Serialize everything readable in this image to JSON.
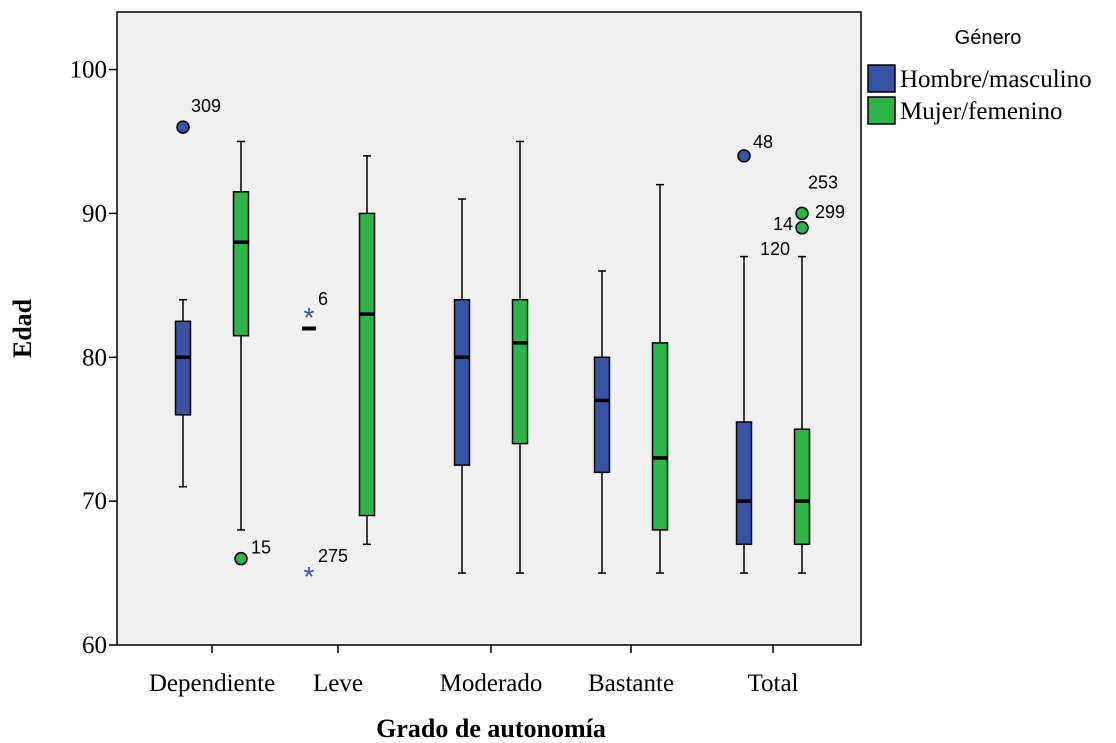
{
  "chart_data": {
    "type": "boxplot",
    "xlabel": "Grado de autonomía",
    "ylabel": "Edad",
    "ylim": [
      60,
      104
    ],
    "yticks": [
      60,
      70,
      80,
      90,
      100
    ],
    "categories": [
      "Dependiente",
      "Leve",
      "Moderado",
      "Bastante",
      "Total"
    ],
    "legend": {
      "title": "Género",
      "position": "top-right",
      "entries": [
        {
          "name": "Hombre/masculino",
          "color": "#3953a4"
        },
        {
          "name": "Mujer/femenino",
          "color": "#2fb44a"
        }
      ]
    },
    "grid": false,
    "background": "#f0f0f0",
    "series": [
      {
        "name": "Hombre/masculino",
        "color": "#3953a4",
        "boxes": [
          {
            "category": "Dependiente",
            "min": 71,
            "q1": 76,
            "median": 80,
            "q3": 82.5,
            "max": 84
          },
          {
            "category": "Leve",
            "min": 82,
            "q1": 82,
            "median": 82,
            "q3": 82,
            "max": 82
          },
          {
            "category": "Moderado",
            "min": 65,
            "q1": 72.5,
            "median": 80,
            "q3": 84,
            "max": 91
          },
          {
            "category": "Bastante",
            "min": 65,
            "q1": 72,
            "median": 77,
            "q3": 80,
            "max": 86
          },
          {
            "category": "Total",
            "min": 65,
            "q1": 67,
            "median": 70,
            "q3": 75.5,
            "max": 87
          }
        ],
        "outliers": [
          {
            "category": "Dependiente",
            "value": 96,
            "label": "309",
            "kind": "circle"
          },
          {
            "category": "Leve",
            "value": 83,
            "label": "6",
            "kind": "extreme"
          },
          {
            "category": "Leve",
            "value": 65,
            "label": "275",
            "kind": "extreme"
          },
          {
            "category": "Total",
            "value": 94,
            "label": "48",
            "kind": "circle"
          }
        ]
      },
      {
        "name": "Mujer/femenino",
        "color": "#2fb44a",
        "boxes": [
          {
            "category": "Dependiente",
            "min": 68,
            "q1": 81.5,
            "median": 88,
            "q3": 91.5,
            "max": 95
          },
          {
            "category": "Leve",
            "min": 67,
            "q1": 69,
            "median": 83,
            "q3": 90,
            "max": 94
          },
          {
            "category": "Moderado",
            "min": 65,
            "q1": 74,
            "median": 81,
            "q3": 84,
            "max": 95
          },
          {
            "category": "Bastante",
            "min": 65,
            "q1": 68,
            "median": 73,
            "q3": 81,
            "max": 92
          },
          {
            "category": "Total",
            "min": 65,
            "q1": 67,
            "median": 70,
            "q3": 75,
            "max": 87
          }
        ],
        "outliers": [
          {
            "category": "Dependiente",
            "value": 66,
            "label": "15",
            "kind": "circle"
          },
          {
            "category": "Total",
            "value": 90,
            "label": "253",
            "kind": "circle"
          },
          {
            "category": "Total",
            "value": 89,
            "label": "14",
            "kind": "circle"
          }
        ]
      }
    ],
    "annotations": [
      "299",
      "120"
    ]
  }
}
